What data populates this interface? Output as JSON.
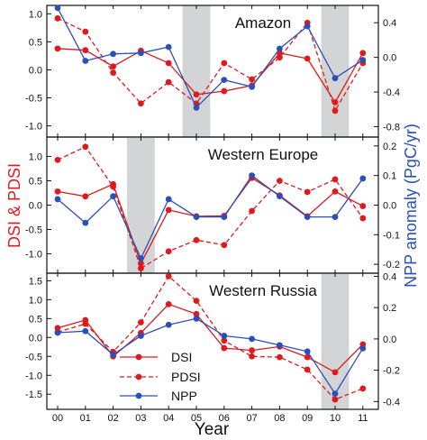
{
  "figure": {
    "left_axis_label": "DSI & PDSI",
    "right_axis_label": "NPP anomaly (PgC/yr)",
    "x_axis_label": "Year",
    "x_tick_labels": [
      "00",
      "01",
      "02",
      "03",
      "04",
      "05",
      "06",
      "07",
      "08",
      "09",
      "10",
      "11"
    ],
    "colors": {
      "dsi": "#e0191d",
      "pdsi": "#e0191d",
      "npp": "#2a4fb8",
      "shade": "#d3d4d6",
      "right_label": "#2a4fb8",
      "left_label": "#e0191d"
    }
  },
  "legend": {
    "items": [
      {
        "label": "DSI",
        "color": "#e0191d",
        "style": "solid"
      },
      {
        "label": "PDSI",
        "color": "#e0191d",
        "style": "dashed"
      },
      {
        "label": "NPP",
        "color": "#2a4fb8",
        "style": "solid"
      }
    ],
    "panel": "bottom",
    "placement": "lower-left"
  },
  "chart_data": [
    {
      "type": "line",
      "title": "Amazon",
      "x": [
        0,
        1,
        2,
        3,
        4,
        5,
        6,
        7,
        8,
        9,
        10,
        11
      ],
      "shaded_years": [
        5,
        10
      ],
      "left_ylim": [
        -1.2,
        1.15
      ],
      "left_yticks": [
        -1.0,
        -0.5,
        0.0,
        0.5,
        1.0
      ],
      "left_ytick_labels": [
        "-1.0",
        "-0.5",
        "0.0",
        "0.5",
        "1.0"
      ],
      "right_ylim": [
        -0.92,
        0.6
      ],
      "right_yticks": [
        -0.8,
        -0.4,
        0.0,
        0.4
      ],
      "right_ytick_labels": [
        "-0.8",
        "-0.4",
        "0.0",
        "0.4"
      ],
      "series": [
        {
          "name": "DSI",
          "axis": "left",
          "values": [
            0.38,
            0.35,
            0.06,
            0.34,
            0.12,
            -0.44,
            -0.38,
            -0.28,
            0.3,
            0.2,
            -0.58,
            0.3
          ]
        },
        {
          "name": "PDSI",
          "axis": "left",
          "values": [
            0.92,
            0.68,
            -0.05,
            -0.6,
            -0.22,
            -0.6,
            0.12,
            -0.17,
            0.22,
            0.84,
            -0.73,
            0.12
          ]
        },
        {
          "name": "NPP",
          "axis": "right",
          "values": [
            0.57,
            -0.04,
            0.04,
            0.05,
            0.12,
            -0.58,
            -0.26,
            -0.34,
            0.1,
            0.36,
            -0.24,
            -0.03
          ]
        }
      ]
    },
    {
      "type": "line",
      "title": "Western Europe",
      "x": [
        0,
        1,
        2,
        3,
        4,
        5,
        6,
        7,
        8,
        9,
        10,
        11
      ],
      "shaded_years": [
        3
      ],
      "left_ylim": [
        -1.4,
        1.4
      ],
      "left_yticks": [
        -1.0,
        -0.5,
        0.0,
        0.5,
        1.0
      ],
      "left_ytick_labels": [
        "-1.0",
        "-0.5",
        "0.0",
        "0.5",
        "1.0"
      ],
      "right_ylim": [
        -0.23,
        0.23
      ],
      "right_yticks": [
        -0.2,
        -0.1,
        0.0,
        0.1,
        0.2
      ],
      "right_ytick_labels": [
        "-0.2",
        "-0.1",
        "0.0",
        "0.1",
        "0.2"
      ],
      "series": [
        {
          "name": "DSI",
          "axis": "left",
          "values": [
            0.28,
            0.18,
            0.43,
            -1.2,
            -0.1,
            -0.23,
            -0.22,
            0.56,
            0.2,
            -0.23,
            0.28,
            -0.02
          ]
        },
        {
          "name": "PDSI",
          "axis": "left",
          "values": [
            0.93,
            1.2,
            0.38,
            -1.3,
            -0.95,
            -0.72,
            -0.82,
            -0.12,
            0.5,
            0.27,
            0.53,
            -0.27
          ]
        },
        {
          "name": "NPP",
          "axis": "right",
          "values": [
            0.02,
            -0.06,
            0.03,
            -0.18,
            0.02,
            -0.04,
            -0.04,
            0.1,
            0.03,
            -0.04,
            -0.04,
            0.09
          ]
        }
      ]
    },
    {
      "type": "line",
      "title": "Western Russia",
      "x": [
        0,
        1,
        2,
        3,
        4,
        5,
        6,
        7,
        8,
        9,
        10,
        11
      ],
      "shaded_years": [
        10
      ],
      "left_ylim": [
        -1.9,
        1.7
      ],
      "left_yticks": [
        -1.5,
        -1.0,
        -0.5,
        0.0,
        0.5,
        1.0,
        1.5
      ],
      "left_ytick_labels": [
        "-1.5",
        "-1.0",
        "-0.5",
        "0.0",
        "0.5",
        "1.0",
        "1.5"
      ],
      "right_ylim": [
        -0.45,
        0.42
      ],
      "right_yticks": [
        -0.4,
        -0.2,
        0.0,
        0.2,
        0.4
      ],
      "right_ytick_labels": [
        "-0.4",
        "-0.2",
        "0.0",
        "0.2",
        "0.4"
      ],
      "series": [
        {
          "name": "DSI",
          "axis": "left",
          "values": [
            0.25,
            0.46,
            -0.5,
            0.12,
            0.88,
            0.62,
            -0.28,
            -0.34,
            -0.24,
            -0.52,
            -0.92,
            -0.18
          ]
        },
        {
          "name": "PDSI",
          "axis": "left",
          "values": [
            0.14,
            0.36,
            -0.38,
            0.4,
            1.62,
            0.97,
            -0.08,
            -0.5,
            -0.52,
            -0.85,
            -1.64,
            -1.35
          ]
        },
        {
          "name": "NPP",
          "axis": "right",
          "values": [
            0.04,
            0.05,
            -0.1,
            0.02,
            0.09,
            0.13,
            0.02,
            0.0,
            -0.04,
            -0.08,
            -0.35,
            -0.06
          ]
        }
      ]
    }
  ]
}
